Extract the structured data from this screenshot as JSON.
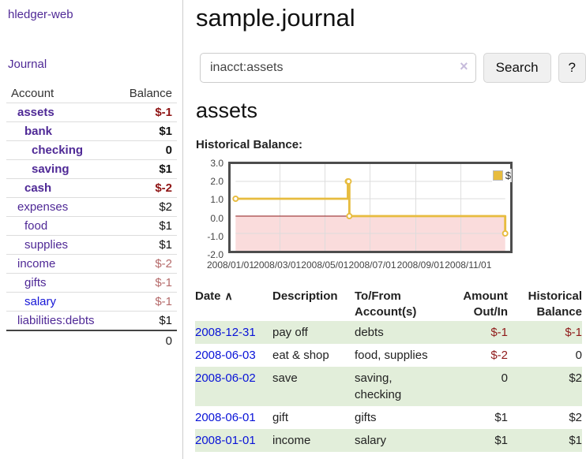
{
  "sidebar": {
    "brand": "hledger-web",
    "nav": [
      {
        "label": "Journal"
      }
    ],
    "accounts_table": {
      "headers": [
        "Account",
        "Balance"
      ],
      "rows": [
        {
          "name": "assets",
          "indent": 1,
          "bold": true,
          "balance": "$-1",
          "neg": true,
          "unvisited": false
        },
        {
          "name": "bank",
          "indent": 2,
          "bold": true,
          "balance": "$1",
          "neg": false,
          "unvisited": false
        },
        {
          "name": "checking",
          "indent": 3,
          "bold": true,
          "balance": "0",
          "neg": false,
          "unvisited": false
        },
        {
          "name": "saving",
          "indent": 3,
          "bold": true,
          "balance": "$1",
          "neg": false,
          "unvisited": false
        },
        {
          "name": "cash",
          "indent": 2,
          "bold": true,
          "balance": "$-2",
          "neg": true,
          "unvisited": false
        },
        {
          "name": "expenses",
          "indent": 1,
          "bold": false,
          "balance": "$2",
          "neg": false,
          "unvisited": false
        },
        {
          "name": "food",
          "indent": 2,
          "bold": false,
          "balance": "$1",
          "neg": false,
          "unvisited": false
        },
        {
          "name": "supplies",
          "indent": 2,
          "bold": false,
          "balance": "$1",
          "neg": false,
          "unvisited": false
        },
        {
          "name": "income",
          "indent": 1,
          "bold": false,
          "balance": "$-2",
          "neg": true,
          "unvisited": false
        },
        {
          "name": "gifts",
          "indent": 2,
          "bold": false,
          "balance": "$-1",
          "neg": true,
          "unvisited": false
        },
        {
          "name": "salary",
          "indent": 2,
          "bold": false,
          "balance": "$-1",
          "neg": true,
          "unvisited": true
        },
        {
          "name": "liabilities:debts",
          "indent": 1,
          "bold": false,
          "balance": "$1",
          "neg": false,
          "unvisited": false
        }
      ],
      "total": "0"
    }
  },
  "header": {
    "title": "sample.journal"
  },
  "search": {
    "value": "inacct:assets",
    "clear_icon": "×",
    "button": "Search",
    "help_button": "?"
  },
  "main": {
    "account_heading": "assets",
    "chart_label": "Historical Balance:"
  },
  "chart_data": {
    "type": "line",
    "title": "Historical Balance",
    "step": true,
    "series": [
      {
        "name": "$",
        "points": [
          [
            "2008-01-01",
            1
          ],
          [
            "2008-06-01",
            2
          ],
          [
            "2008-06-02",
            2
          ],
          [
            "2008-06-03",
            0
          ],
          [
            "2008-12-31",
            -1
          ]
        ]
      }
    ],
    "x_range": [
      "2008-01-01",
      "2008-12-31"
    ],
    "ylim": [
      -2,
      3
    ],
    "y_ticks": [
      3,
      2,
      1,
      0,
      -1,
      -2
    ],
    "x_ticks": [
      "2008/01/01",
      "2008/03/01",
      "2008/05/01",
      "2008/07/01",
      "2008/09/01",
      "2008/11/01"
    ],
    "legend": "$",
    "legend_position": "top-right",
    "grid": true,
    "colors": {
      "line": "#e7bc3f",
      "marker_fill": "#ffffff",
      "negative_region": "#fadcdc",
      "zero_line": "#8f1a1a",
      "grid": "#dcdcdc",
      "border": "#4d4d4d"
    }
  },
  "transactions": {
    "headers": [
      "Date",
      "Description",
      "To/From Account(s)",
      "Amount Out/In",
      "Historical Balance"
    ],
    "sort_icon": "∧",
    "rows": [
      {
        "date": "2008-12-31",
        "description": "pay off",
        "to_from": "debts",
        "amount": "$-1",
        "amount_neg": true,
        "balance": "$-1",
        "balance_neg": true
      },
      {
        "date": "2008-06-03",
        "description": "eat & shop",
        "to_from": "food, supplies",
        "amount": "$-2",
        "amount_neg": true,
        "balance": "0",
        "balance_neg": false
      },
      {
        "date": "2008-06-02",
        "description": "save",
        "to_from": "saving,\nchecking",
        "amount": "0",
        "amount_neg": false,
        "balance": "$2",
        "balance_neg": false
      },
      {
        "date": "2008-06-01",
        "description": "gift",
        "to_from": "gifts",
        "amount": "$1",
        "amount_neg": false,
        "balance": "$2",
        "balance_neg": false
      },
      {
        "date": "2008-01-01",
        "description": "income",
        "to_from": "salary",
        "amount": "$1",
        "amount_neg": false,
        "balance": "$1",
        "balance_neg": false
      }
    ]
  }
}
